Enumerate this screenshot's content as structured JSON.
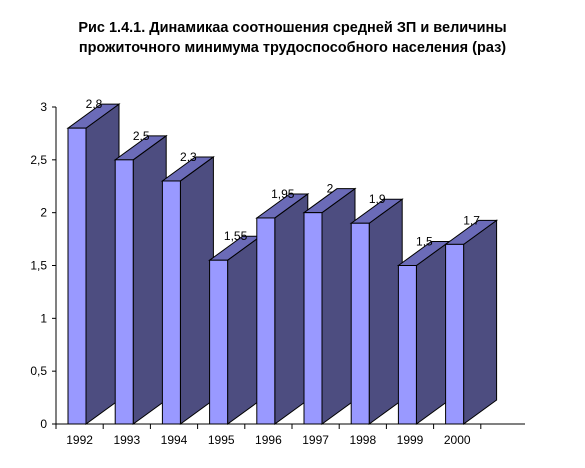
{
  "title_lines": [
    "Рис 1.4.1.  Динамикаа соотношения средней ЗП и величины",
    "прожиточного минимума трудоспособного населения (раз)"
  ],
  "chart_data": {
    "type": "bar",
    "title": "Рис 1.4.1.  Динамикаа соотношения средней ЗП и величины прожиточного минимума трудоспособного населения (раз)",
    "categories": [
      "1992",
      "1993",
      "1994",
      "1995",
      "1996",
      "1997",
      "1998",
      "1999",
      "2000"
    ],
    "values": [
      2.8,
      2.5,
      2.3,
      1.55,
      1.95,
      2,
      1.9,
      1.5,
      1.7
    ],
    "value_labels": [
      "2,8",
      "2,5",
      "2,3",
      "1,55",
      "1,95",
      "2",
      "1,9",
      "1,5",
      "1,7"
    ],
    "y_ticks": [
      "0",
      "0,5",
      "1",
      "1,5",
      "2",
      "2,5",
      "3"
    ],
    "ylim": [
      0,
      3
    ],
    "grid": false,
    "legend": "none",
    "style": "3d-columns",
    "colors": {
      "front": "#9999ff",
      "side": "#4d4d80",
      "top": "#6b6bb8",
      "outline": "#000000"
    }
  }
}
